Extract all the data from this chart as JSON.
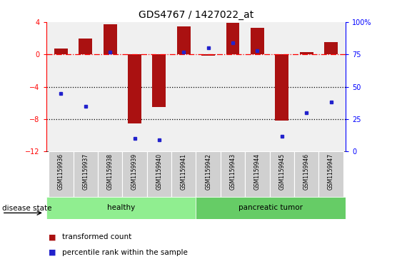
{
  "title": "GDS4767 / 1427022_at",
  "samples": [
    "GSM1159936",
    "GSM1159937",
    "GSM1159938",
    "GSM1159939",
    "GSM1159940",
    "GSM1159941",
    "GSM1159942",
    "GSM1159943",
    "GSM1159944",
    "GSM1159945",
    "GSM1159946",
    "GSM1159947"
  ],
  "red_values": [
    0.7,
    2.0,
    3.7,
    -8.5,
    -6.5,
    3.5,
    -0.2,
    3.9,
    3.3,
    -8.2,
    0.3,
    1.5
  ],
  "blue_values": [
    45,
    35,
    77,
    10,
    9,
    77,
    80,
    84,
    78,
    12,
    30,
    38
  ],
  "ylim_left": [
    -12,
    4
  ],
  "ylim_right": [
    0,
    100
  ],
  "yticks_left": [
    4,
    0,
    -4,
    -8,
    -12
  ],
  "yticks_right": [
    100,
    75,
    50,
    25,
    0
  ],
  "dotted_lines": [
    -4,
    -8
  ],
  "healthy_label": "healthy",
  "tumor_label": "pancreatic tumor",
  "disease_state_label": "disease state",
  "legend_red": "transformed count",
  "legend_blue": "percentile rank within the sample",
  "bar_color": "#aa1111",
  "dot_color": "#2222cc",
  "healthy_color": "#90EE90",
  "tumor_color": "#66CC66",
  "background_color": "#ffffff",
  "plot_bg": "#f0f0f0"
}
